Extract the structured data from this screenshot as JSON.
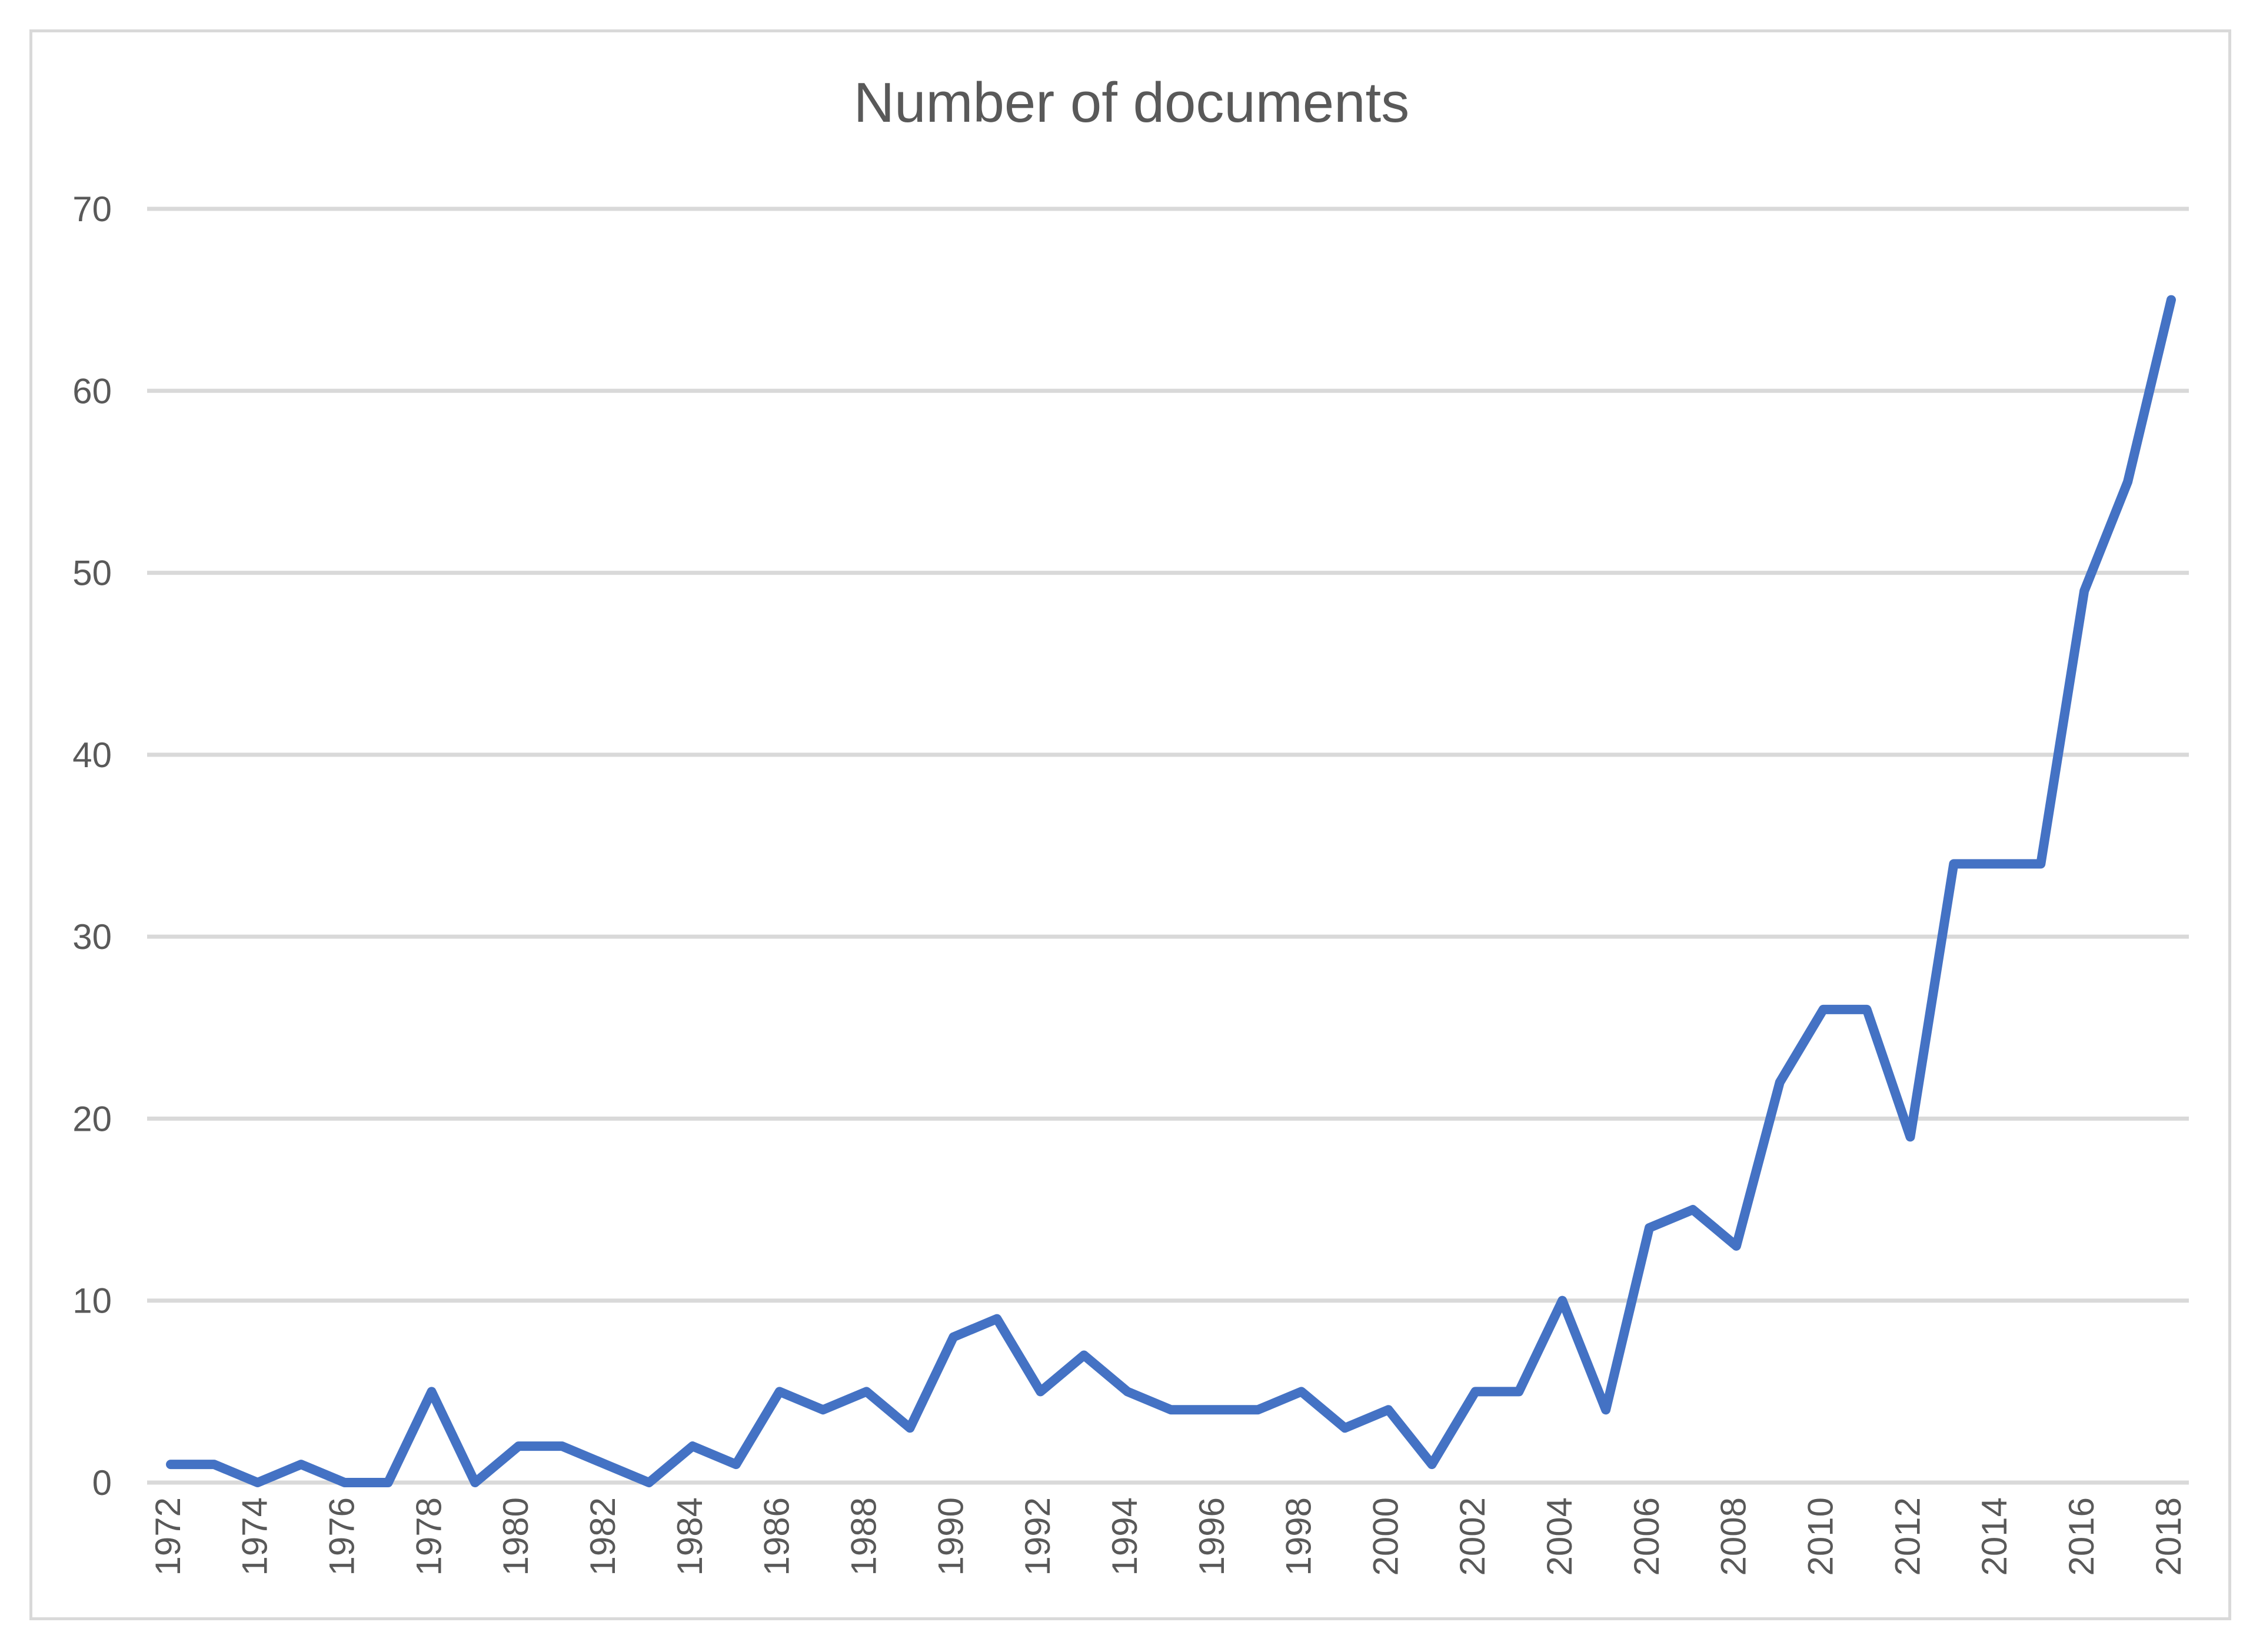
{
  "chart_data": {
    "type": "line",
    "title": "Number of documents",
    "xlabel": "",
    "ylabel": "",
    "x": [
      1972,
      1973,
      1974,
      1975,
      1976,
      1977,
      1978,
      1979,
      1980,
      1981,
      1982,
      1983,
      1984,
      1985,
      1986,
      1987,
      1988,
      1989,
      1990,
      1991,
      1992,
      1993,
      1994,
      1995,
      1996,
      1997,
      1998,
      1999,
      2000,
      2001,
      2002,
      2003,
      2004,
      2005,
      2006,
      2007,
      2008,
      2009,
      2010,
      2011,
      2012,
      2013,
      2014,
      2015,
      2016,
      2017,
      2018
    ],
    "series": [
      {
        "values": [
          1,
          1,
          0,
          1,
          0,
          0,
          5,
          0,
          2,
          2,
          1,
          0,
          2,
          1,
          5,
          4,
          5,
          3,
          8,
          9,
          5,
          7,
          5,
          4,
          4,
          4,
          5,
          3,
          4,
          1,
          5,
          5,
          10,
          4,
          14,
          15,
          13,
          22,
          26,
          26,
          19,
          34,
          34,
          34,
          49,
          55,
          65
        ],
        "color": "#4472c4"
      }
    ],
    "x_tick_labels": [
      "1972",
      "1974",
      "1976",
      "1978",
      "1980",
      "1982",
      "1984",
      "1986",
      "1988",
      "1990",
      "1992",
      "1994",
      "1996",
      "1998",
      "2000",
      "2002",
      "2004",
      "2006",
      "2008",
      "2010",
      "2012",
      "2014",
      "2016",
      "2018"
    ],
    "y_ticks": [
      0,
      10,
      20,
      30,
      40,
      50,
      60,
      70
    ],
    "ylim": [
      0,
      70
    ],
    "grid": true,
    "legend": "none"
  },
  "colors": {
    "line": "#4472c4",
    "grid": "#d9d9d9",
    "text": "#595959"
  }
}
